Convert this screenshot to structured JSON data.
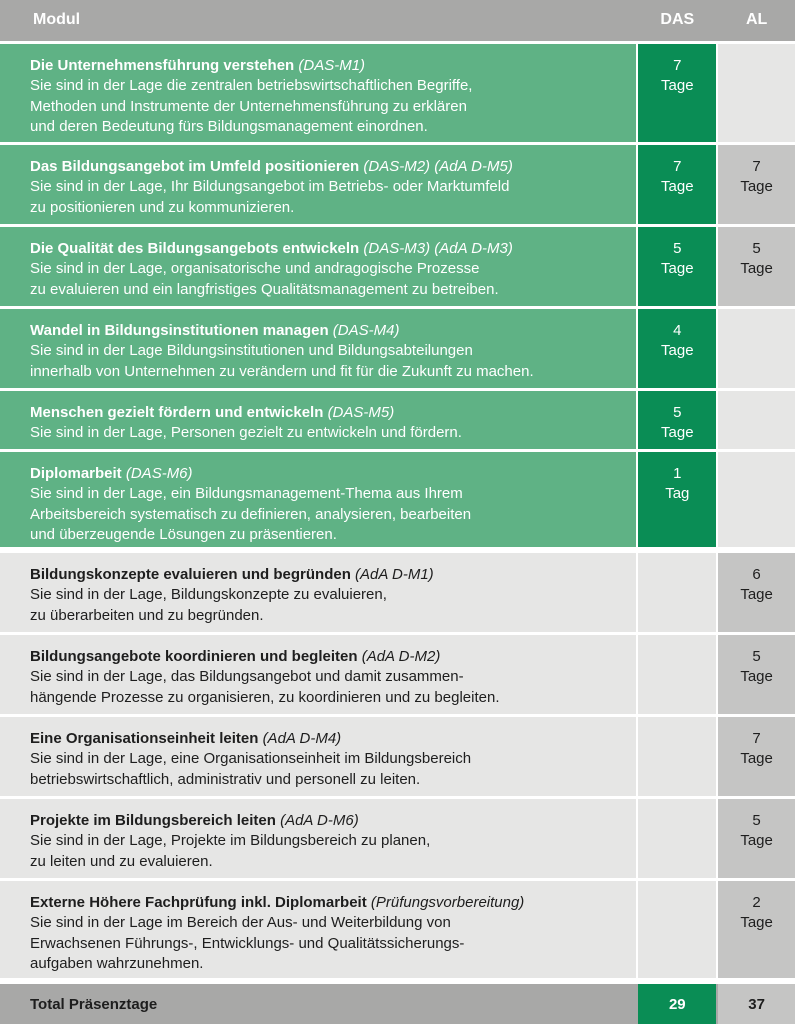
{
  "header": {
    "modul": "Modul",
    "das": "DAS",
    "al": "AL"
  },
  "rows": [
    {
      "title": "Die Unternehmensführung verstehen",
      "code": "(DAS-M1)",
      "lines": [
        "Sie sind in der Lage die zentralen betriebswirtschaftlichen Begriffe,",
        "Methoden und Instrumente der Unternehmensführung zu erklären",
        "und deren Bedeutung fürs Bildungsmanagement einordnen."
      ],
      "das_num": "7",
      "das_unit": "Tage",
      "al_num": "",
      "al_unit": ""
    },
    {
      "title": "Das Bildungsangebot im Umfeld positionieren",
      "code": "(DAS-M2) (AdA D-M5)",
      "lines": [
        "Sie sind in der Lage, Ihr Bildungsangebot im Betriebs- oder Marktumfeld",
        "zu positionieren und zu kommunizieren."
      ],
      "das_num": "7",
      "das_unit": "Tage",
      "al_num": "7",
      "al_unit": "Tage"
    },
    {
      "title": "Die Qualität des Bildungsangebots entwickeln",
      "code": "(DAS-M3) (AdA D-M3)",
      "lines": [
        "Sie sind in der Lage, organisatorische und andragogische Prozesse",
        "zu evaluieren und ein langfristiges Qualitätsmanagement zu betreiben."
      ],
      "das_num": "5",
      "das_unit": "Tage",
      "al_num": "5",
      "al_unit": "Tage"
    },
    {
      "title": "Wandel in Bildungsinstitutionen managen",
      "code": "(DAS-M4)",
      "lines": [
        "Sie sind in der Lage Bildungsinstitutionen und Bildungsabteilungen",
        "innerhalb von Unternehmen zu verändern und fit für die Zukunft zu machen."
      ],
      "das_num": "4",
      "das_unit": "Tage",
      "al_num": "",
      "al_unit": ""
    },
    {
      "title": "Menschen gezielt fördern und entwickeln",
      "code": "(DAS-M5)",
      "lines": [
        "Sie sind in der Lage, Personen gezielt zu entwickeln und fördern."
      ],
      "das_num": "5",
      "das_unit": "Tage",
      "al_num": "",
      "al_unit": ""
    },
    {
      "title": "Diplomarbeit",
      "code": "(DAS-M6)",
      "lines": [
        "Sie sind in der Lage, ein Bildungsmanagement-Thema aus Ihrem",
        "Arbeitsbereich systematisch zu definieren, analysieren, bearbeiten",
        "und überzeugende Lösungen zu präsentieren."
      ],
      "das_num": "1",
      "das_unit": "Tag",
      "al_num": "",
      "al_unit": ""
    },
    {
      "title": "Bildungskonzepte evaluieren und begründen",
      "code": "(AdA D-M1)",
      "lines": [
        "Sie sind in der Lage, Bildungskonzepte zu evaluieren,",
        "zu überarbeiten und zu begründen."
      ],
      "das_num": "",
      "das_unit": "",
      "al_num": "6",
      "al_unit": "Tage"
    },
    {
      "title": "Bildungsangebote koordinieren und begleiten",
      "code": "(AdA D-M2)",
      "lines": [
        "Sie sind in der Lage, das Bildungsangebot und damit zusammen-",
        "hängende Prozesse zu organisieren, zu koordinieren und zu begleiten."
      ],
      "das_num": "",
      "das_unit": "",
      "al_num": "5",
      "al_unit": "Tage"
    },
    {
      "title": "Eine Organisationseinheit leiten",
      "code": "(AdA D-M4)",
      "lines": [
        "Sie sind in der Lage, eine Organisationseinheit im Bildungsbereich",
        "betriebswirtschaftlich, administrativ und personell zu leiten."
      ],
      "das_num": "",
      "das_unit": "",
      "al_num": "7",
      "al_unit": "Tage"
    },
    {
      "title": "Projekte im Bildungsbereich leiten",
      "code": "(AdA D-M6)",
      "lines": [
        "Sie sind in der Lage, Projekte im Bildungsbereich zu planen,",
        "zu leiten und zu evaluieren."
      ],
      "das_num": "",
      "das_unit": "",
      "al_num": "5",
      "al_unit": "Tage"
    },
    {
      "title": "Externe Höhere Fachprüfung inkl. Diplomarbeit",
      "code": "(Prüfungsvorbereitung)",
      "lines": [
        "Sie sind in der Lage im Bereich der Aus- und Weiterbildung von",
        "Erwachsenen Führungs-, Entwicklungs- und Qualitätssicherungs-",
        "aufgaben wahrzunehmen."
      ],
      "das_num": "",
      "das_unit": "",
      "al_num": "2",
      "al_unit": "Tage"
    }
  ],
  "total": {
    "label": "Total Präsenztage",
    "das": "29",
    "al": "37"
  }
}
